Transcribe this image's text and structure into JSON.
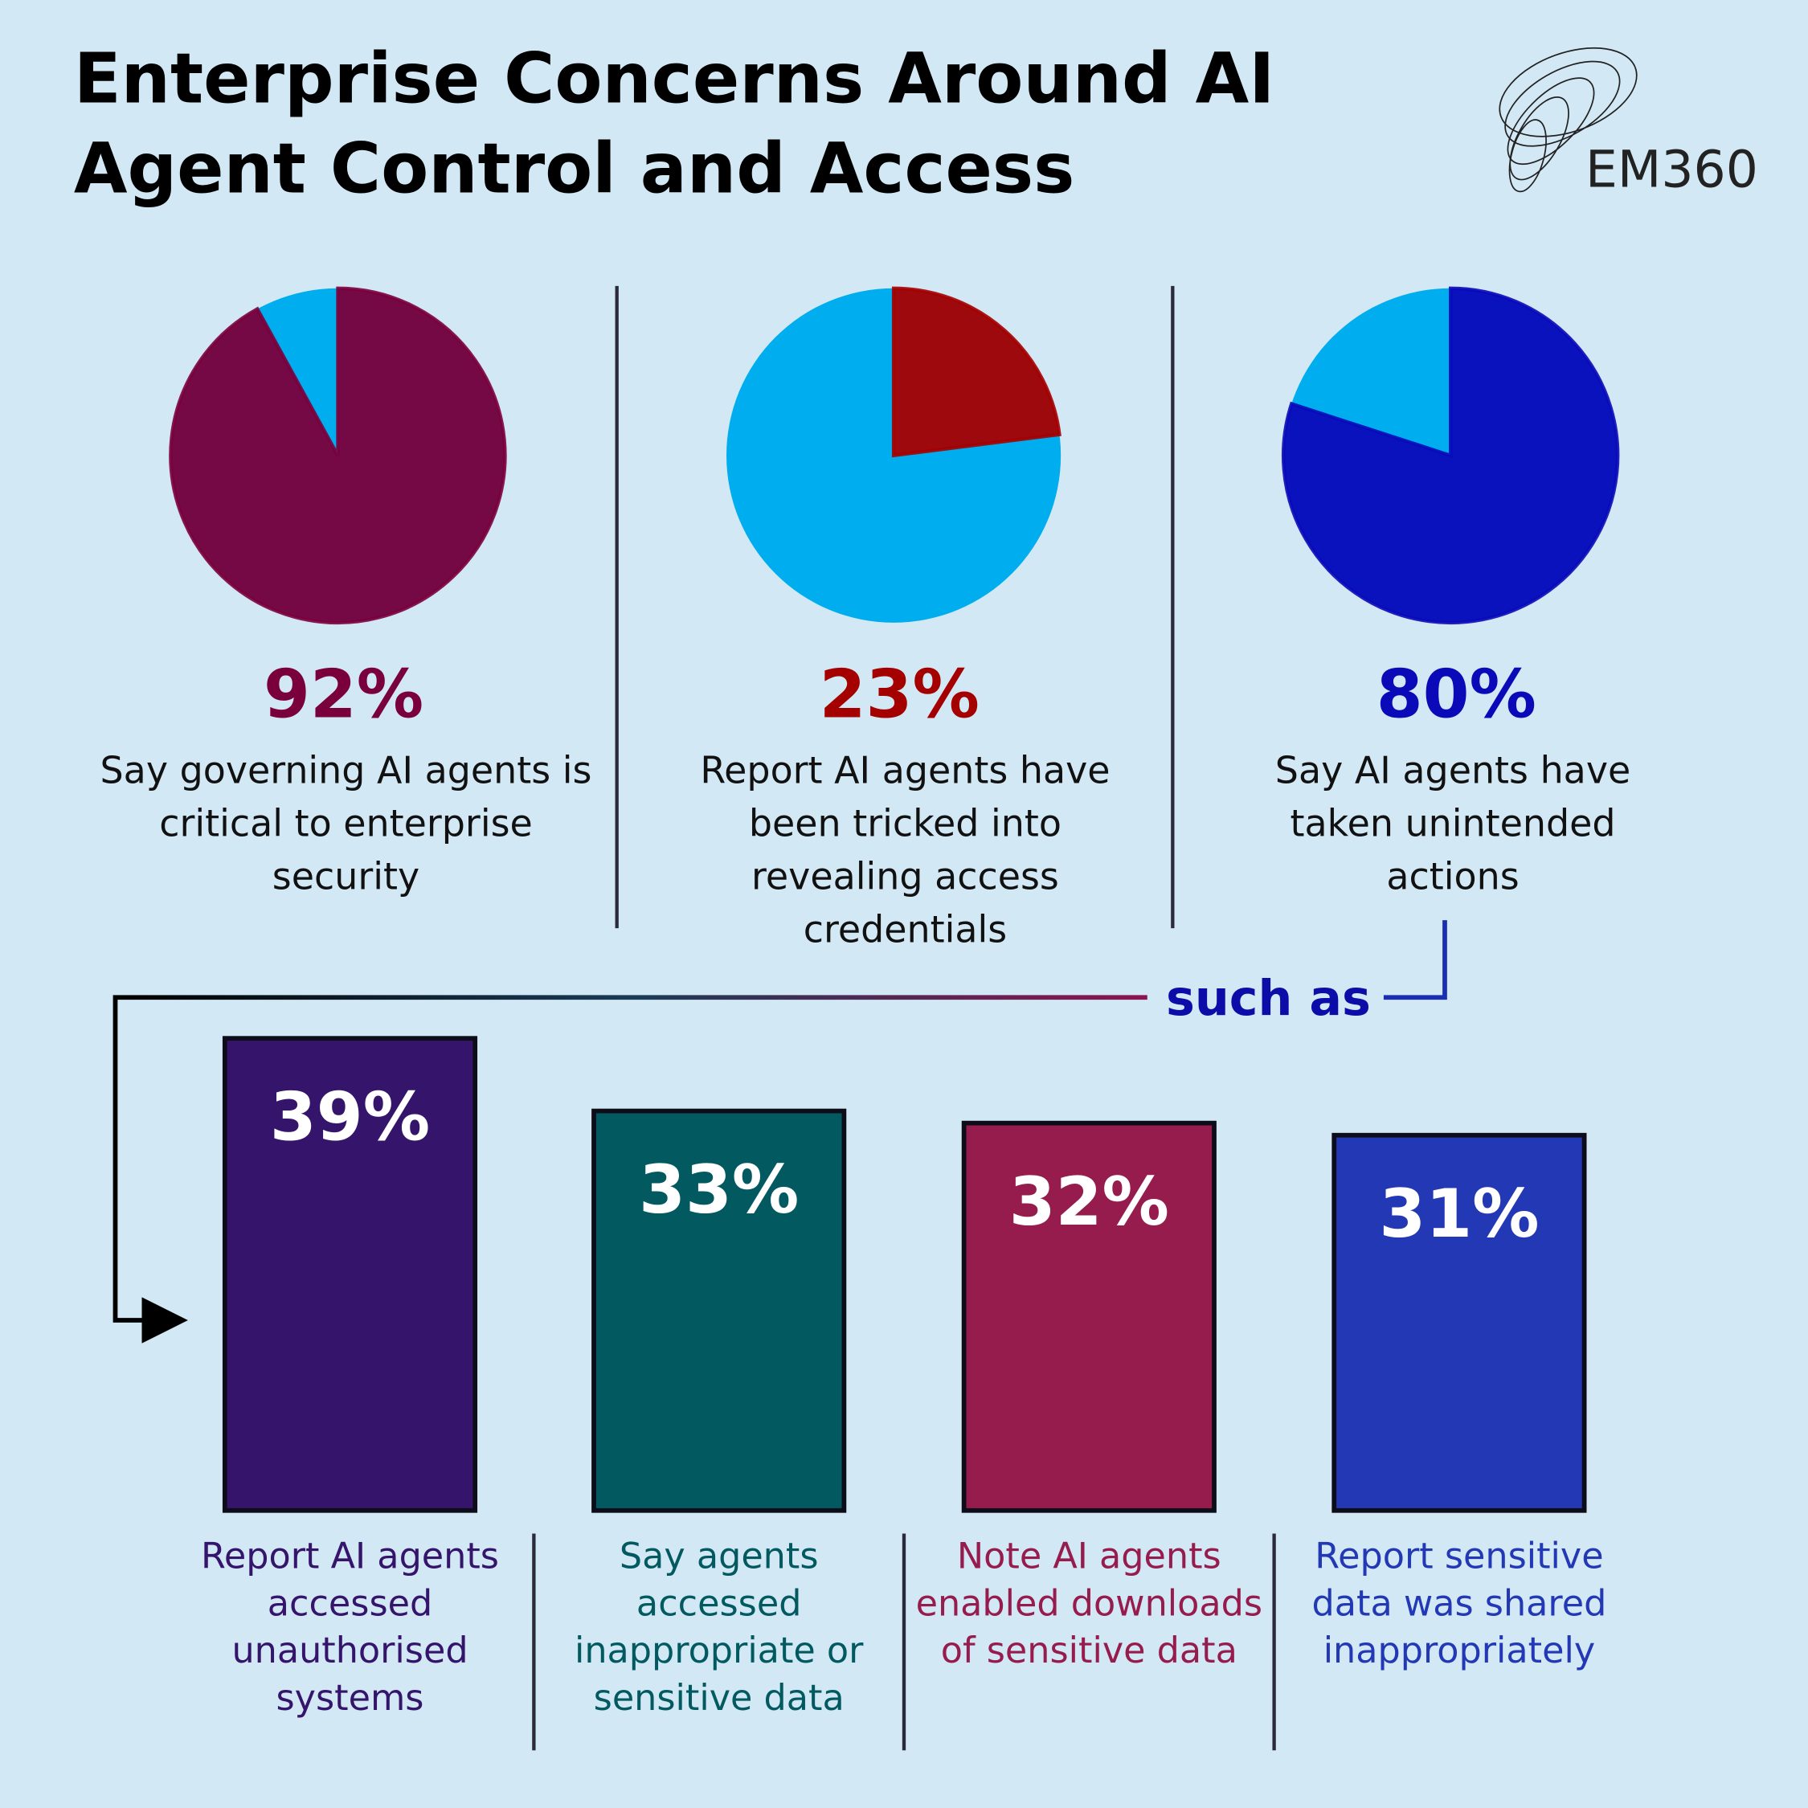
{
  "title": "Enterprise Concerns Around AI Agent Control and Access",
  "logo": "EM360",
  "annotation": "such as",
  "chart_data": [
    {
      "type": "pie",
      "values": [
        92
      ],
      "value_labels": [
        "92%"
      ],
      "color": "#7a003c",
      "rest_color": "#00aeef",
      "description": "Say governing AI agents is critical to enterprise security"
    },
    {
      "type": "pie",
      "values": [
        23
      ],
      "value_labels": [
        "23%"
      ],
      "color": "#a50000",
      "rest_color": "#00aeef",
      "description": "Report AI agents have been tricked into revealing access credentials"
    },
    {
      "type": "pie",
      "values": [
        80
      ],
      "value_labels": [
        "80%"
      ],
      "color": "#0a0ab8",
      "rest_color": "#00aeef",
      "description": "Say AI agents have taken unintended actions"
    },
    {
      "type": "bar",
      "categories": [
        "Report AI agents accessed unauthorised systems",
        "Say agents accessed inappropriate or sensitive data",
        "Note AI agents enabled downloads of sensitive data",
        "Report sensitive data was shared inappropriately"
      ],
      "values": [
        39,
        33,
        32,
        31
      ],
      "value_labels": [
        "39%",
        "33%",
        "32%",
        "31%"
      ],
      "colors": [
        "#35146b",
        "#025a60",
        "#961c4d",
        "#2238b5"
      ]
    }
  ]
}
